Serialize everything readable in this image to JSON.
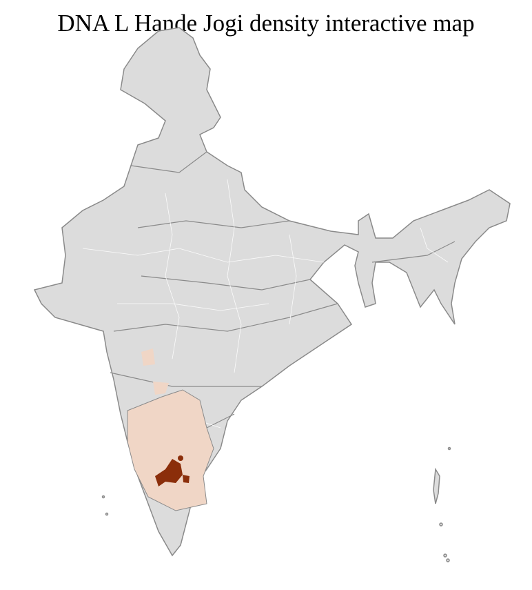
{
  "title": "DNA L Hande Jogi density interactive map",
  "map": {
    "region": "India districts",
    "colors": {
      "no_data": "#dcdcdc",
      "low_density": "#f0d6c6",
      "high_density": "#8b2e0a",
      "district_border": "#ffffff",
      "state_border": "#8a8a8a"
    },
    "legend": null
  }
}
